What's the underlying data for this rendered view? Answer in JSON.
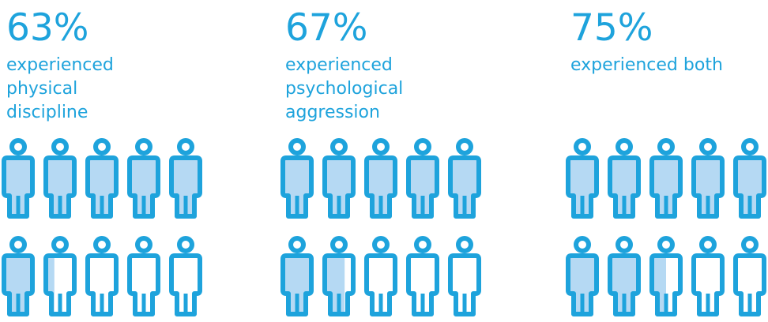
{
  "colors": {
    "accent": "#1ea3dc",
    "fill": "#b5d9f3",
    "background": "#ffffff"
  },
  "chart_data": [
    {
      "type": "pictogram",
      "value": 63,
      "percent_label": "63%",
      "label_lines": [
        "experienced",
        "physical",
        "discipline"
      ],
      "icons_total": 10,
      "icon": "person-icon"
    },
    {
      "type": "pictogram",
      "value": 67,
      "percent_label": "67%",
      "label_lines": [
        "experienced",
        "psychological",
        "aggression"
      ],
      "icons_total": 10,
      "icon": "person-icon"
    },
    {
      "type": "pictogram",
      "value": 75,
      "percent_label": "75%",
      "label_lines": [
        "experienced both"
      ],
      "icons_total": 10,
      "icon": "person-icon"
    }
  ]
}
